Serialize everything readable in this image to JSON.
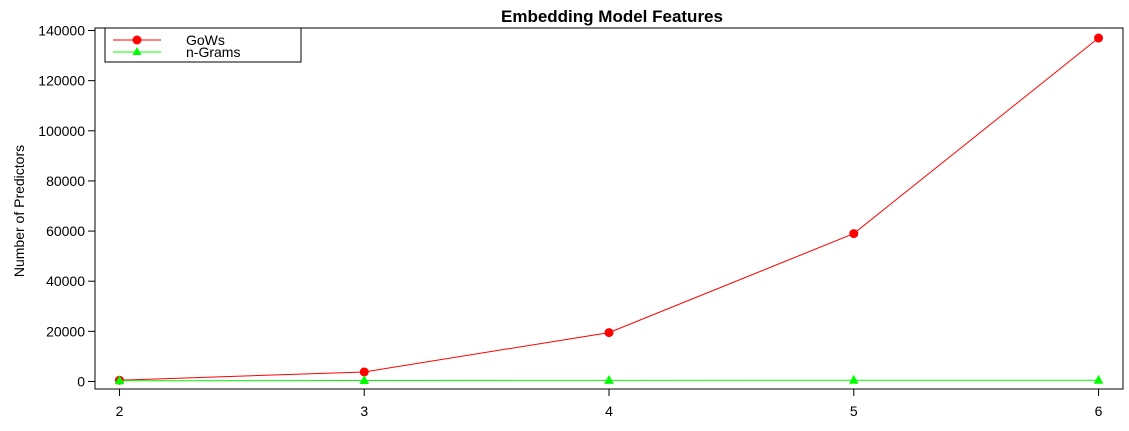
{
  "chart_data": {
    "type": "line",
    "title": "Embedding Model Features",
    "xlabel": "",
    "ylabel": "Number of Predictors",
    "x": [
      2,
      3,
      4,
      5,
      6
    ],
    "xticks": [
      2,
      3,
      4,
      5,
      6
    ],
    "yticks": [
      0,
      20000,
      40000,
      60000,
      80000,
      100000,
      120000,
      140000
    ],
    "xlim": [
      1.9,
      6.1
    ],
    "ylim": [
      -3000,
      141000
    ],
    "grid": false,
    "legend_position": "top-left",
    "series": [
      {
        "name": "GoWs",
        "color": "#ff0000",
        "marker": "circle",
        "values": [
          500,
          3800,
          19500,
          59000,
          137000
        ]
      },
      {
        "name": "n-Grams",
        "color": "#00ff00",
        "marker": "triangle",
        "values": [
          300,
          400,
          450,
          480,
          500
        ]
      }
    ]
  }
}
